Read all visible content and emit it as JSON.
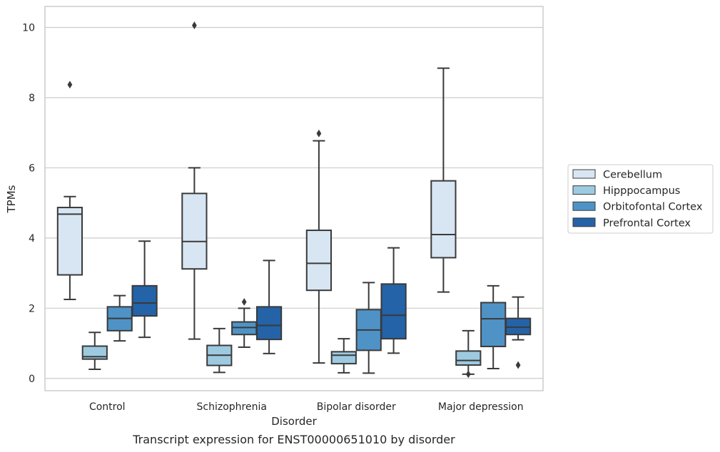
{
  "caption": "Transcript expression for ENST00000651010 by disorder",
  "chart_data": {
    "type": "box",
    "title": "",
    "xlabel": "Disorder",
    "ylabel": "TPMs",
    "ylim": [
      -0.35,
      10.6
    ],
    "yticks": [
      0,
      2,
      4,
      6,
      8,
      10
    ],
    "grid": "horizontal",
    "legend_placement": "right",
    "categories": [
      "Control",
      "Schizophrenia",
      "Bipolar disorder",
      "Major depression"
    ],
    "series": [
      {
        "name": "Cerebellum",
        "color": "#d8e6f3",
        "boxes": [
          {
            "whisker_low": 2.25,
            "q1": 2.95,
            "median": 4.68,
            "q3": 4.87,
            "whisker_high": 5.18,
            "outliers": [
              8.37
            ]
          },
          {
            "whisker_low": 1.12,
            "q1": 3.12,
            "median": 3.9,
            "q3": 5.27,
            "whisker_high": 6.0,
            "outliers": [
              10.06
            ]
          },
          {
            "whisker_low": 0.44,
            "q1": 2.51,
            "median": 3.28,
            "q3": 4.22,
            "whisker_high": 6.77,
            "outliers": [
              6.98
            ]
          },
          {
            "whisker_low": 2.46,
            "q1": 3.44,
            "median": 4.1,
            "q3": 5.63,
            "whisker_high": 8.84,
            "outliers": []
          }
        ]
      },
      {
        "name": "Hipppocampus",
        "color": "#9ecae1",
        "boxes": [
          {
            "whisker_low": 0.26,
            "q1": 0.55,
            "median": 0.62,
            "q3": 0.92,
            "whisker_high": 1.31,
            "outliers": []
          },
          {
            "whisker_low": 0.17,
            "q1": 0.37,
            "median": 0.66,
            "q3": 0.94,
            "whisker_high": 1.42,
            "outliers": []
          },
          {
            "whisker_low": 0.16,
            "q1": 0.42,
            "median": 0.66,
            "q3": 0.76,
            "whisker_high": 1.13,
            "outliers": []
          },
          {
            "whisker_low": 0.12,
            "q1": 0.38,
            "median": 0.51,
            "q3": 0.78,
            "whisker_high": 1.36,
            "outliers": [
              0.12
            ]
          }
        ]
      },
      {
        "name": "Orbitofontal Cortex",
        "color": "#4f93c6",
        "boxes": [
          {
            "whisker_low": 1.07,
            "q1": 1.36,
            "median": 1.71,
            "q3": 2.04,
            "whisker_high": 2.36,
            "outliers": []
          },
          {
            "whisker_low": 0.89,
            "q1": 1.25,
            "median": 1.45,
            "q3": 1.61,
            "whisker_high": 2.0,
            "outliers": [
              2.18
            ]
          },
          {
            "whisker_low": 0.15,
            "q1": 0.8,
            "median": 1.38,
            "q3": 1.96,
            "whisker_high": 2.73,
            "outliers": []
          },
          {
            "whisker_low": 0.28,
            "q1": 0.91,
            "median": 1.7,
            "q3": 2.16,
            "whisker_high": 2.64,
            "outliers": []
          }
        ]
      },
      {
        "name": "Prefrontal Cortex",
        "color": "#2463a7",
        "boxes": [
          {
            "whisker_low": 1.17,
            "q1": 1.78,
            "median": 2.15,
            "q3": 2.64,
            "whisker_high": 3.91,
            "outliers": []
          },
          {
            "whisker_low": 0.71,
            "q1": 1.11,
            "median": 1.51,
            "q3": 2.04,
            "whisker_high": 3.36,
            "outliers": []
          },
          {
            "whisker_low": 0.72,
            "q1": 1.13,
            "median": 1.8,
            "q3": 2.69,
            "whisker_high": 3.72,
            "outliers": []
          },
          {
            "whisker_low": 1.1,
            "q1": 1.25,
            "median": 1.46,
            "q3": 1.71,
            "whisker_high": 2.32,
            "outliers": [
              0.38
            ]
          }
        ]
      }
    ]
  }
}
